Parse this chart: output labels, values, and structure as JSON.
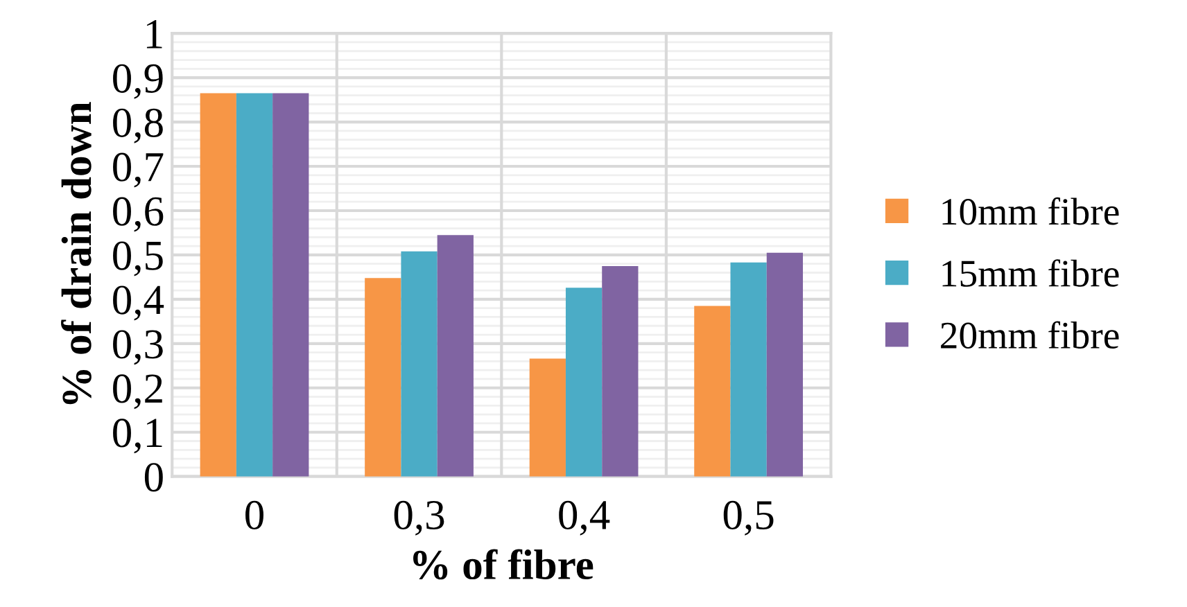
{
  "chart_data": {
    "type": "bar",
    "xlabel": "% of fibre",
    "ylabel": "% of drain down",
    "categories": [
      "0",
      "0,3",
      "0,4",
      "0,5"
    ],
    "series": [
      {
        "name": "10mm fibre",
        "color": "#f79646",
        "values": [
          0.865,
          0.448,
          0.266,
          0.385
        ]
      },
      {
        "name": "15mm fibre",
        "color": "#4bacc6",
        "values": [
          0.865,
          0.508,
          0.426,
          0.483
        ]
      },
      {
        "name": "20mm fibre",
        "color": "#8064a2",
        "values": [
          0.865,
          0.545,
          0.475,
          0.505
        ]
      }
    ],
    "ylim": [
      0,
      1
    ],
    "yticks": [
      {
        "value": 0,
        "label": "0"
      },
      {
        "value": 0.1,
        "label": "0,1"
      },
      {
        "value": 0.2,
        "label": "0,2"
      },
      {
        "value": 0.3,
        "label": "0,3"
      },
      {
        "value": 0.4,
        "label": "0,4"
      },
      {
        "value": 0.5,
        "label": "0,5"
      },
      {
        "value": 0.6,
        "label": "0,6"
      },
      {
        "value": 0.7,
        "label": "0,7"
      },
      {
        "value": 0.8,
        "label": "0,8"
      },
      {
        "value": 0.9,
        "label": "0,9"
      },
      {
        "value": 1,
        "label": "1"
      }
    ],
    "grid": true,
    "legend": "right"
  }
}
